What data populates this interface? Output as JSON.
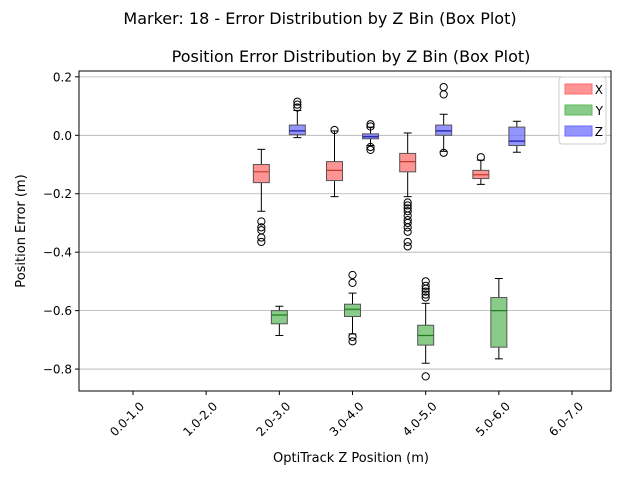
{
  "figure_title": "Marker: 18 - Error Distribution by Z Bin (Box Plot)",
  "chart_data": {
    "type": "box",
    "title": "Position Error Distribution by Z Bin (Box Plot)",
    "xlabel": "OptiTrack Z Position (m)",
    "ylabel": "Position Error (m)",
    "categories": [
      "0.0-1.0",
      "1.0-2.0",
      "2.0-3.0",
      "3.0-4.0",
      "4.0-5.0",
      "5.0-6.0",
      "6.0-7.0"
    ],
    "ylim": [
      -0.875,
      0.22
    ],
    "yticks": [
      0.2,
      0.0,
      -0.2,
      -0.4,
      -0.6,
      -0.8
    ],
    "ytick_labels": [
      "0.2",
      "0.0",
      "−0.2",
      "−0.4",
      "−0.6",
      "−0.8"
    ],
    "grid": "y",
    "legend_position": "top-right",
    "series": [
      {
        "name": "X",
        "color": "#ff6b6b",
        "median_color": "#c0392b",
        "boxes": [
          {
            "category": "2.0-3.0",
            "whislo": -0.26,
            "q1": -0.162,
            "med": -0.125,
            "q3": -0.1,
            "whishi": -0.048,
            "fliers": [
              -0.295,
              -0.315,
              -0.325,
              -0.35,
              -0.365
            ]
          },
          {
            "category": "3.0-4.0",
            "whislo": -0.21,
            "q1": -0.155,
            "med": -0.12,
            "q3": -0.09,
            "whishi": 0.015,
            "fliers": [
              0.018
            ]
          },
          {
            "category": "4.0-5.0",
            "whislo": -0.21,
            "q1": -0.125,
            "med": -0.09,
            "q3": -0.062,
            "whishi": 0.008,
            "fliers": [
              -0.23,
              -0.24,
              -0.25,
              -0.26,
              -0.275,
              -0.29,
              -0.3,
              -0.315,
              -0.33,
              -0.365,
              -0.38
            ]
          },
          {
            "category": "5.0-6.0",
            "whislo": -0.168,
            "q1": -0.148,
            "med": -0.135,
            "q3": -0.12,
            "whishi": -0.085,
            "fliers": [
              -0.075
            ]
          }
        ]
      },
      {
        "name": "Y",
        "color": "#5cb85c",
        "median_color": "#1e7b1e",
        "boxes": [
          {
            "category": "2.0-3.0",
            "whislo": -0.685,
            "q1": -0.645,
            "med": -0.615,
            "q3": -0.6,
            "whishi": -0.585,
            "fliers": []
          },
          {
            "category": "3.0-4.0",
            "whislo": -0.68,
            "q1": -0.62,
            "med": -0.595,
            "q3": -0.578,
            "whishi": -0.54,
            "fliers": [
              -0.478,
              -0.505,
              -0.69,
              -0.705
            ]
          },
          {
            "category": "4.0-5.0",
            "whislo": -0.78,
            "q1": -0.718,
            "med": -0.685,
            "q3": -0.65,
            "whishi": -0.575,
            "fliers": [
              -0.5,
              -0.515,
              -0.525,
              -0.535,
              -0.545,
              -0.555,
              -0.825
            ]
          },
          {
            "category": "5.0-6.0",
            "whislo": -0.765,
            "q1": -0.725,
            "med": -0.6,
            "q3": -0.555,
            "whishi": -0.49,
            "fliers": []
          }
        ]
      },
      {
        "name": "Z",
        "color": "#6b6bff",
        "median_color": "#1a1aa0",
        "boxes": [
          {
            "category": "2.0-3.0",
            "whislo": -0.008,
            "q1": 0.002,
            "med": 0.015,
            "q3": 0.035,
            "whishi": 0.085,
            "fliers": [
              0.095,
              0.105,
              0.115
            ]
          },
          {
            "category": "3.0-4.0",
            "whislo": -0.035,
            "q1": -0.012,
            "med": -0.005,
            "q3": 0.005,
            "whishi": 0.028,
            "fliers": [
              0.03,
              0.038,
              -0.04,
              -0.05
            ]
          },
          {
            "category": "4.0-5.0",
            "whislo": -0.055,
            "q1": 0.0,
            "med": 0.015,
            "q3": 0.035,
            "whishi": 0.072,
            "fliers": [
              0.14,
              0.165,
              -0.06
            ]
          },
          {
            "category": "5.0-6.0",
            "whislo": -0.058,
            "q1": -0.035,
            "med": -0.02,
            "q3": 0.028,
            "whishi": 0.048,
            "fliers": []
          }
        ]
      }
    ]
  }
}
